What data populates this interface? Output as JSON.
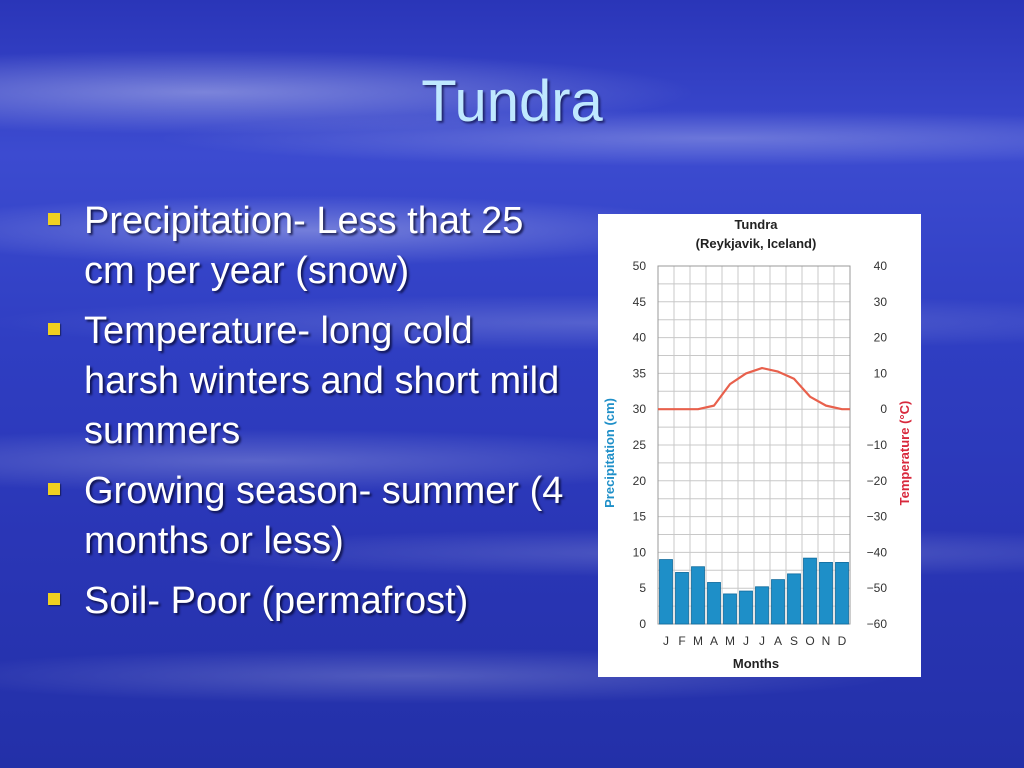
{
  "slide": {
    "title": "Tundra",
    "bullets": [
      "Precipitation- Less that 25 cm per year (snow)",
      "Temperature- long cold harsh winters and short mild summers",
      "Growing season- summer (4 months or less)",
      "Soil- Poor (permafrost)"
    ]
  },
  "chart_data": {
    "type": "bar",
    "title": "Tundra",
    "subtitle": "(Reykjavik, Iceland)",
    "xlabel": "Months",
    "ylabel": "Precipitation (cm)",
    "y2label": "Temperature (°C)",
    "categories": [
      "J",
      "F",
      "M",
      "A",
      "M",
      "J",
      "J",
      "A",
      "S",
      "O",
      "N",
      "D"
    ],
    "ylim": [
      0,
      50
    ],
    "yticks": [
      "0",
      "5",
      "10",
      "15",
      "20",
      "25",
      "30",
      "35",
      "40",
      "45",
      "50"
    ],
    "y2lim": [
      -60,
      40
    ],
    "y2ticks": [
      "−60",
      "−50",
      "−40",
      "−30",
      "−20",
      "−10",
      "0",
      "10",
      "20",
      "30",
      "40"
    ],
    "grid": true,
    "series": [
      {
        "kind": "bar",
        "axis": "left",
        "color": "#1e8fc8",
        "values": [
          9,
          7.2,
          8,
          5.8,
          4.2,
          4.6,
          5.2,
          6.2,
          7,
          9.2,
          8.6,
          8.6
        ]
      },
      {
        "kind": "line",
        "axis": "right",
        "color": "#e8604c",
        "values": [
          0,
          0,
          0,
          1,
          7,
          10,
          11.5,
          10.5,
          8.5,
          3.5,
          1,
          0
        ]
      }
    ],
    "colors": {
      "left_axis": "#1e8fc8",
      "right_axis": "#d8283c",
      "grid": "#c8c8c8"
    }
  }
}
